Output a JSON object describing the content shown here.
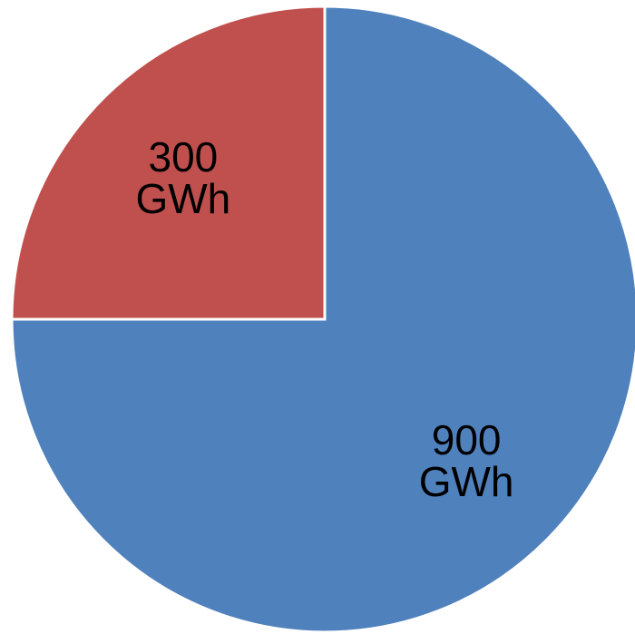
{
  "chart_data": {
    "type": "pie",
    "slices": [
      {
        "value": 900,
        "label_lines": [
          "900",
          "GWh"
        ],
        "color": "#4f81bd"
      },
      {
        "value": 300,
        "label_lines": [
          "300",
          "GWh"
        ],
        "color": "#c0504d"
      }
    ]
  }
}
